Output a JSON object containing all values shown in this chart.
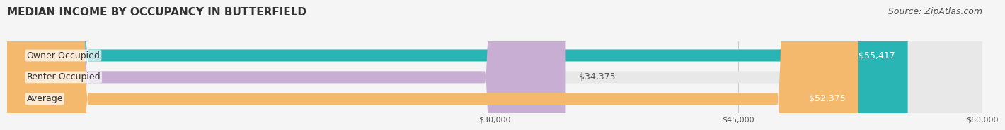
{
  "title": "MEDIAN INCOME BY OCCUPANCY IN BUTTERFIELD",
  "source": "Source: ZipAtlas.com",
  "categories": [
    "Owner-Occupied",
    "Renter-Occupied",
    "Average"
  ],
  "values": [
    55417,
    34375,
    52375
  ],
  "bar_colors": [
    "#2ab5b5",
    "#c9aed4",
    "#f5b96e"
  ],
  "bar_labels": [
    "$55,417",
    "$34,375",
    "$52,375"
  ],
  "label_inside": [
    true,
    false,
    true
  ],
  "xlim": [
    0,
    60000
  ],
  "xticks": [
    30000,
    45000,
    60000
  ],
  "xtick_labels": [
    "$30,000",
    "$45,000",
    "$60,000"
  ],
  "background_color": "#f5f5f5",
  "bar_bg_color": "#e8e8e8",
  "title_fontsize": 11,
  "source_fontsize": 9,
  "label_fontsize": 9,
  "category_fontsize": 9,
  "bar_height": 0.55,
  "value_label_color_inside": "#ffffff",
  "value_label_color_outside": "#555555",
  "category_label_color": "#333333"
}
